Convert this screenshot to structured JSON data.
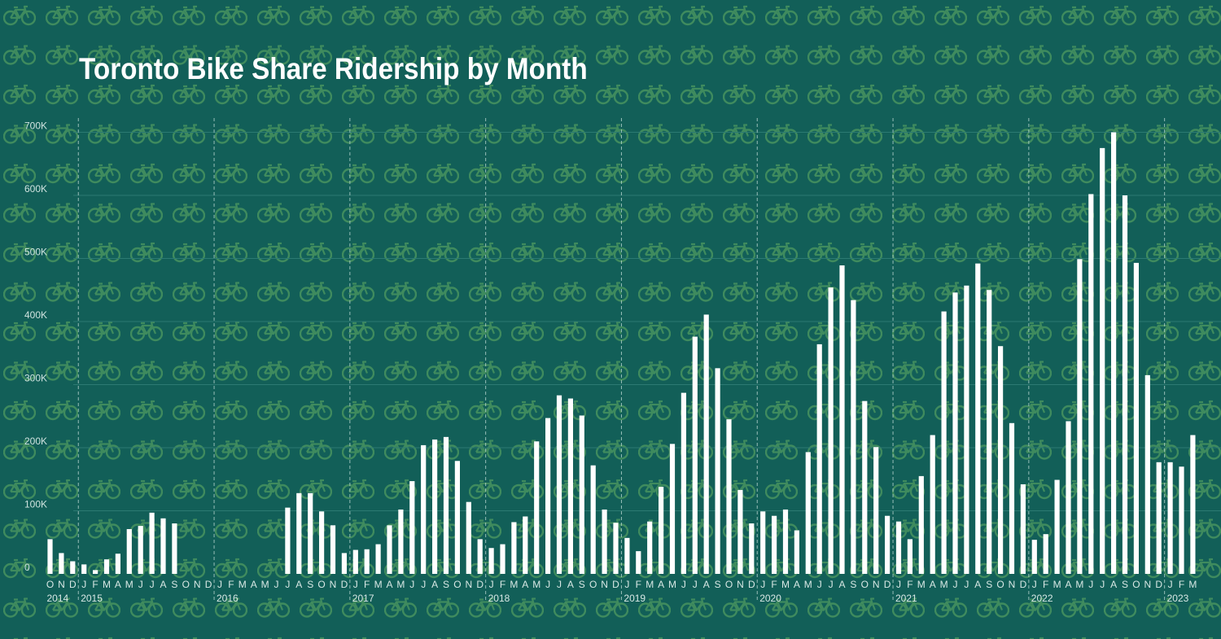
{
  "title": "Toronto Bike Share Ridership by Month",
  "colors": {
    "background": "#125f58",
    "bar": "#ffffff",
    "gridline": "#2c7a72",
    "pattern": "#3f8b5e"
  },
  "background_icon": "bicycle-icon",
  "chart_data": {
    "type": "bar",
    "title": "Toronto Bike Share Ridership by Month",
    "xlabel": "",
    "ylabel": "",
    "ylim": [
      0,
      720000
    ],
    "yticks": [
      0,
      100000,
      200000,
      300000,
      400000,
      500000,
      600000,
      700000
    ],
    "ytick_labels": [
      "0",
      "100K",
      "200K",
      "300K",
      "400K",
      "500K",
      "600K",
      "700K"
    ],
    "grid": true,
    "year_labels": [
      "2014",
      "2015",
      "2016",
      "2017",
      "2018",
      "2019",
      "2020",
      "2021",
      "2022",
      "2023"
    ],
    "categories": [
      "O",
      "N",
      "D",
      "J",
      "F",
      "M",
      "A",
      "M",
      "J",
      "J",
      "A",
      "S",
      "O",
      "N",
      "D",
      "J",
      "F",
      "M",
      "A",
      "M",
      "J",
      "J",
      "A",
      "S",
      "O",
      "N",
      "D",
      "J",
      "F",
      "M",
      "A",
      "M",
      "J",
      "J",
      "A",
      "S",
      "O",
      "N",
      "D",
      "J",
      "F",
      "M",
      "A",
      "M",
      "J",
      "J",
      "A",
      "S",
      "O",
      "N",
      "D",
      "J",
      "F",
      "M",
      "A",
      "M",
      "J",
      "J",
      "A",
      "S",
      "O",
      "N",
      "D",
      "J",
      "F",
      "M",
      "A",
      "M",
      "J",
      "J",
      "A",
      "S",
      "O",
      "N",
      "D",
      "J",
      "F",
      "M",
      "A",
      "M",
      "J",
      "J",
      "A",
      "S",
      "O",
      "N",
      "D",
      "J",
      "F",
      "M",
      "A",
      "M",
      "J",
      "J",
      "A",
      "S",
      "O",
      "N",
      "D",
      "J",
      "F",
      "M"
    ],
    "years": [
      "2014",
      "2014",
      "2014",
      "2015",
      "2015",
      "2015",
      "2015",
      "2015",
      "2015",
      "2015",
      "2015",
      "2015",
      "2015",
      "2015",
      "2015",
      "2016",
      "2016",
      "2016",
      "2016",
      "2016",
      "2016",
      "2016",
      "2016",
      "2016",
      "2016",
      "2016",
      "2016",
      "2017",
      "2017",
      "2017",
      "2017",
      "2017",
      "2017",
      "2017",
      "2017",
      "2017",
      "2017",
      "2017",
      "2017",
      "2018",
      "2018",
      "2018",
      "2018",
      "2018",
      "2018",
      "2018",
      "2018",
      "2018",
      "2018",
      "2018",
      "2018",
      "2019",
      "2019",
      "2019",
      "2019",
      "2019",
      "2019",
      "2019",
      "2019",
      "2019",
      "2019",
      "2019",
      "2019",
      "2020",
      "2020",
      "2020",
      "2020",
      "2020",
      "2020",
      "2020",
      "2020",
      "2020",
      "2020",
      "2020",
      "2020",
      "2021",
      "2021",
      "2021",
      "2021",
      "2021",
      "2021",
      "2021",
      "2021",
      "2021",
      "2021",
      "2021",
      "2021",
      "2022",
      "2022",
      "2022",
      "2022",
      "2022",
      "2022",
      "2022",
      "2022",
      "2022",
      "2022",
      "2022",
      "2022",
      "2023",
      "2023",
      "2023"
    ],
    "values": [
      55000,
      33000,
      20000,
      15000,
      6000,
      23000,
      32000,
      71000,
      76000,
      97000,
      88000,
      80000,
      null,
      null,
      null,
      null,
      null,
      null,
      null,
      null,
      null,
      105000,
      128000,
      128000,
      99000,
      77000,
      33000,
      38000,
      39000,
      47000,
      77000,
      102000,
      147000,
      204000,
      213000,
      217000,
      179000,
      114000,
      55000,
      41000,
      47000,
      82000,
      91000,
      210000,
      247000,
      283000,
      278000,
      251000,
      172000,
      102000,
      81000,
      57000,
      36000,
      83000,
      138000,
      206000,
      287000,
      376000,
      411000,
      326000,
      245000,
      133000,
      80000,
      99000,
      92000,
      102000,
      69000,
      193000,
      364000,
      454000,
      489000,
      434000,
      274000,
      201000,
      92000,
      83000,
      55000,
      155000,
      220000,
      416000,
      446000,
      457000,
      492000,
      450000,
      361000,
      239000,
      142000,
      54000,
      63000,
      149000,
      242000,
      499000,
      602000,
      675000,
      700000,
      600000,
      493000,
      315000,
      177000,
      177000,
      170000,
      220000
    ]
  }
}
